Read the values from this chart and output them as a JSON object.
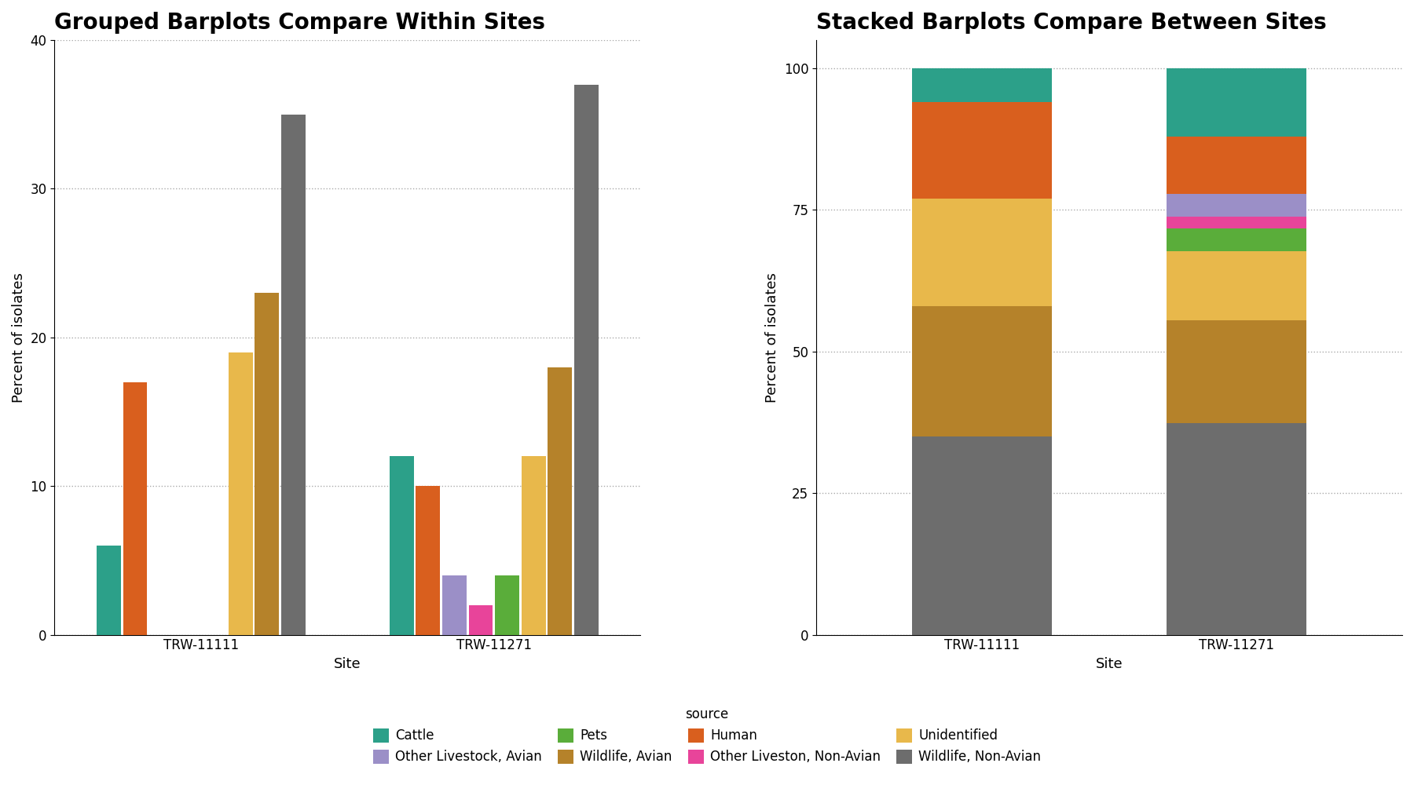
{
  "sites": [
    "TRW-11111",
    "TRW-11271"
  ],
  "categories": [
    "Cattle",
    "Human",
    "Other Livestock, Avian",
    "Other Liveston, Non-Avian",
    "Pets",
    "Unidentified",
    "Wildlife, Avian",
    "Wildlife, Non-Avian"
  ],
  "colors": [
    "#2ca089",
    "#d95f1e",
    "#9b8fc7",
    "#e8449a",
    "#5aad3a",
    "#e8b84b",
    "#b5822a",
    "#6d6d6d"
  ],
  "values": {
    "TRW-11111": [
      6,
      17,
      0,
      0,
      0,
      19,
      23,
      35
    ],
    "TRW-11271": [
      12,
      10,
      4,
      2,
      4,
      12,
      18,
      37
    ]
  },
  "stack_order": [
    7,
    6,
    5,
    4,
    3,
    2,
    1,
    0
  ],
  "left_title": "Grouped Barplots Compare Within Sites",
  "right_title": "Stacked Barplots Compare Between Sites",
  "ylabel": "Percent of isolates",
  "xlabel": "Site",
  "left_ylim": [
    0,
    40
  ],
  "right_ylim": [
    0,
    105
  ],
  "left_yticks": [
    0,
    10,
    20,
    30,
    40
  ],
  "right_yticks": [
    0,
    25,
    50,
    75,
    100
  ],
  "background_color": "#ffffff",
  "title_fontsize": 20,
  "axis_fontsize": 13,
  "tick_fontsize": 12,
  "legend_fontsize": 12,
  "legend_title": "source"
}
